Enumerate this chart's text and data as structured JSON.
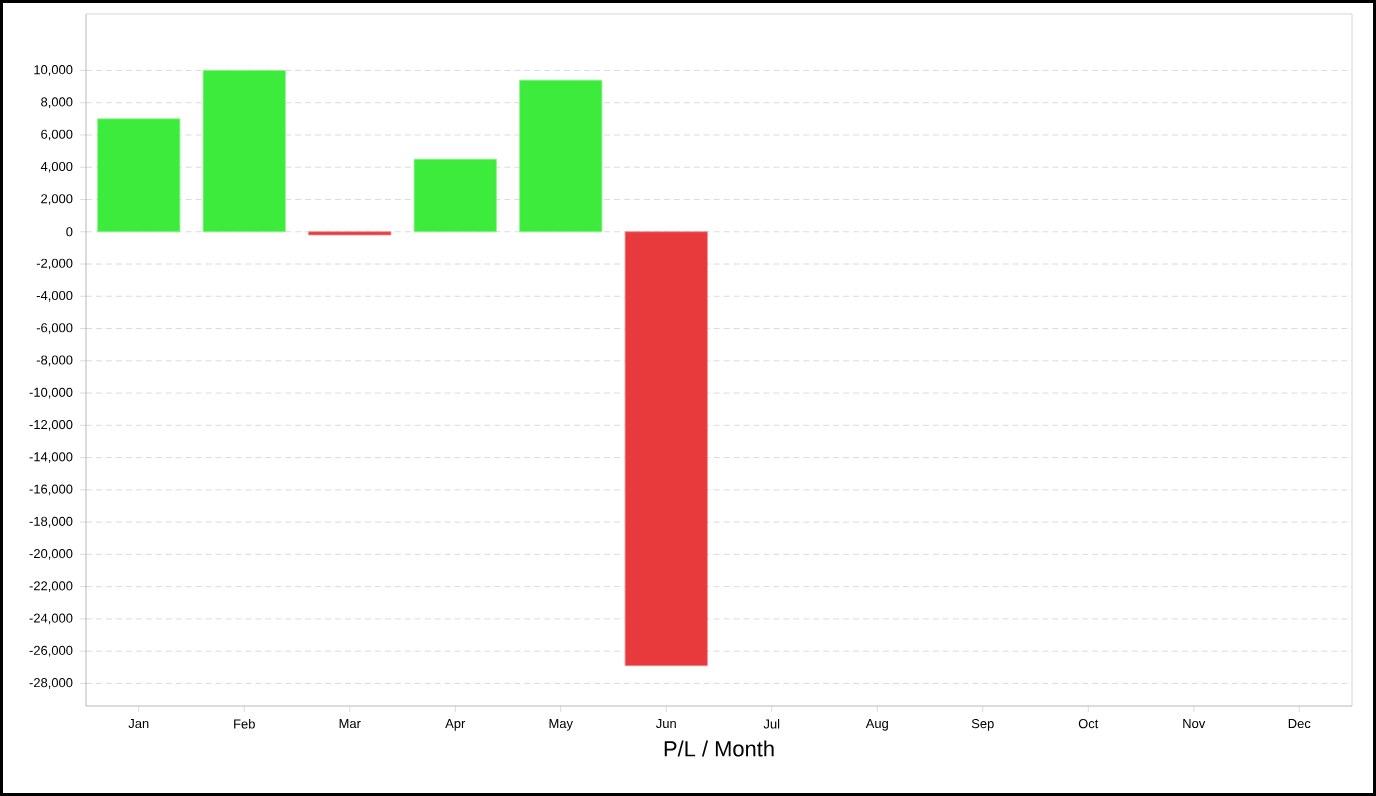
{
  "chart_data": {
    "type": "bar",
    "xlabel": "P/L / Month",
    "categories": [
      "Jan",
      "Feb",
      "Mar",
      "Apr",
      "May",
      "Jun",
      "Jul",
      "Aug",
      "Sep",
      "Oct",
      "Nov",
      "Dec"
    ],
    "values": [
      7000,
      10000,
      -200,
      4500,
      9400,
      -26900,
      null,
      null,
      null,
      null,
      null,
      null
    ],
    "colors": [
      "#3deb3d",
      "#3deb3d",
      "#e8393d",
      "#3deb3d",
      "#3deb3d",
      "#e8393d",
      null,
      null,
      null,
      null,
      null,
      null
    ],
    "ylim": [
      -29400,
      13500
    ],
    "yticks": [
      {
        "value": -28000,
        "label": "-28,000"
      },
      {
        "value": -26000,
        "label": "-26,000"
      },
      {
        "value": -24000,
        "label": "-24,000"
      },
      {
        "value": -22000,
        "label": "-22,000"
      },
      {
        "value": -20000,
        "label": "-20,000"
      },
      {
        "value": -18000,
        "label": "-18,000"
      },
      {
        "value": -16000,
        "label": "-16,000"
      },
      {
        "value": -14000,
        "label": "-14,000"
      },
      {
        "value": -12000,
        "label": "-12,000"
      },
      {
        "value": -10000,
        "label": "-10,000"
      },
      {
        "value": -8000,
        "label": "-8,000"
      },
      {
        "value": -6000,
        "label": "-6,000"
      },
      {
        "value": -4000,
        "label": "-4,000"
      },
      {
        "value": -2000,
        "label": "-2,000"
      },
      {
        "value": 0,
        "label": "0"
      },
      {
        "value": 2000,
        "label": "2,000"
      },
      {
        "value": 4000,
        "label": "4,000"
      },
      {
        "value": 6000,
        "label": "6,000"
      },
      {
        "value": 8000,
        "label": "8,000"
      },
      {
        "value": 10000,
        "label": "10,000"
      }
    ],
    "grid": "y"
  }
}
